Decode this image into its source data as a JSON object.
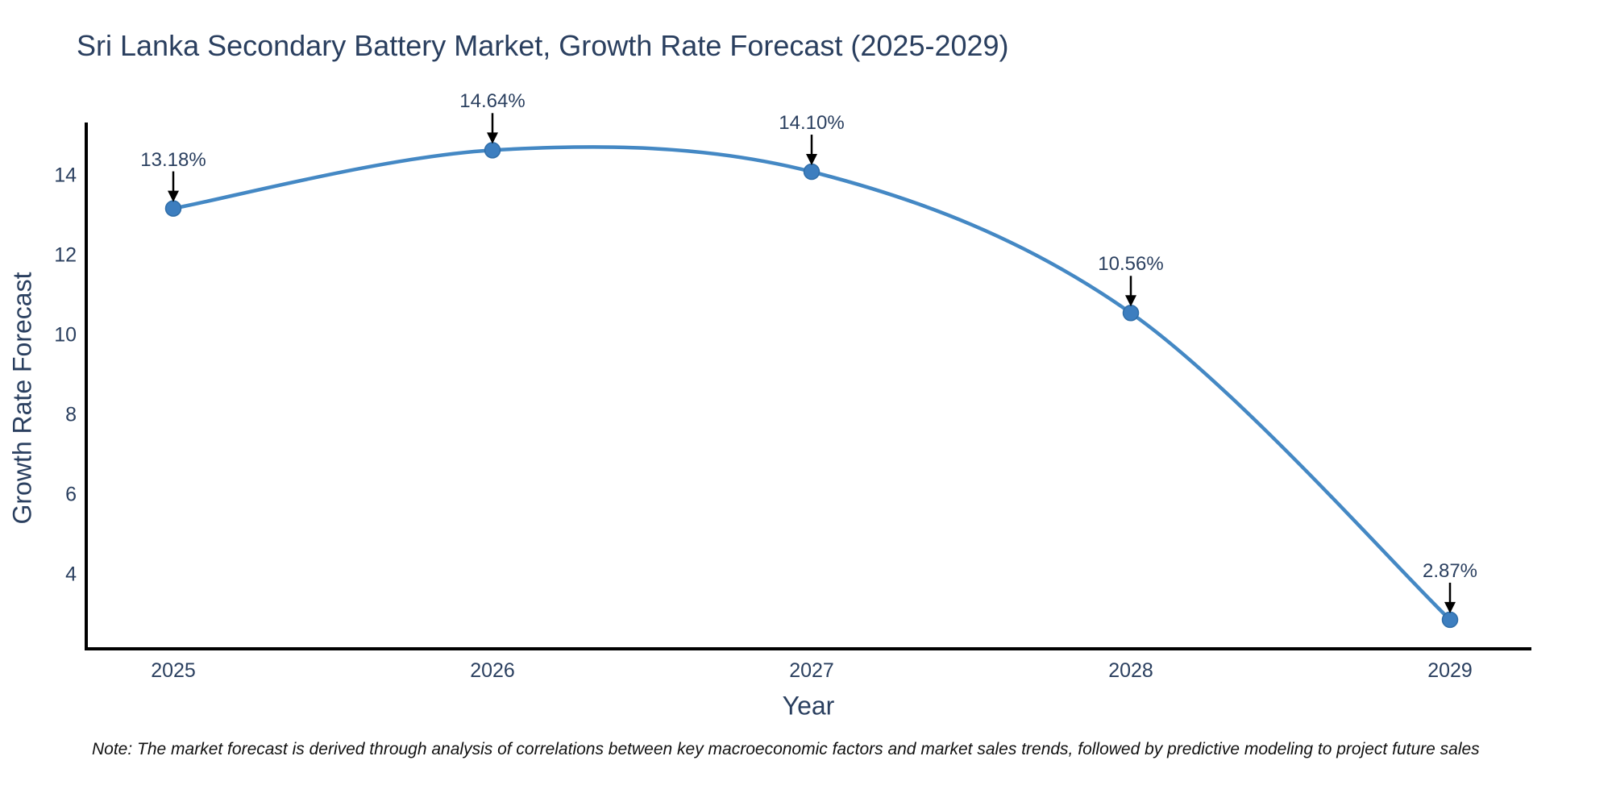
{
  "page": {
    "background_color": "#ffffff"
  },
  "chart": {
    "title": "Sri Lanka Secondary Battery Market, Growth Rate Forecast (2025-2029)",
    "note": "Note: The market forecast is derived through analysis of correlations between key macroeconomic factors and market sales trends, followed by predictive modeling to project future sales",
    "colors": {
      "line": "#4488c4",
      "marker": "#3d7ebf",
      "marker_edge": "#2f6da8",
      "axis_line": "#000000",
      "text": "#2a3f5f",
      "arrow": "#000000",
      "note_text": "#111111"
    }
  },
  "chart_data": {
    "type": "line",
    "title": "Sri Lanka Secondary Battery Market, Growth Rate Forecast (2025-2029)",
    "xlabel": "Year",
    "ylabel": "Growth Rate Forecast",
    "x": [
      2025,
      2026,
      2027,
      2028,
      2029
    ],
    "values": [
      13.18,
      14.64,
      14.1,
      10.56,
      2.87
    ],
    "point_labels": [
      "13.18%",
      "14.64%",
      "14.10%",
      "10.56%",
      "2.87%"
    ],
    "xticks": [
      "2025",
      "2026",
      "2027",
      "2028",
      "2029"
    ],
    "yticks": [
      4,
      6,
      8,
      10,
      12,
      14
    ],
    "ylim": [
      2.1,
      15.35
    ],
    "line_shape": "spline",
    "grid": false,
    "legend": "none",
    "annotation_style": "value label with black arrow pointing down to marker"
  }
}
